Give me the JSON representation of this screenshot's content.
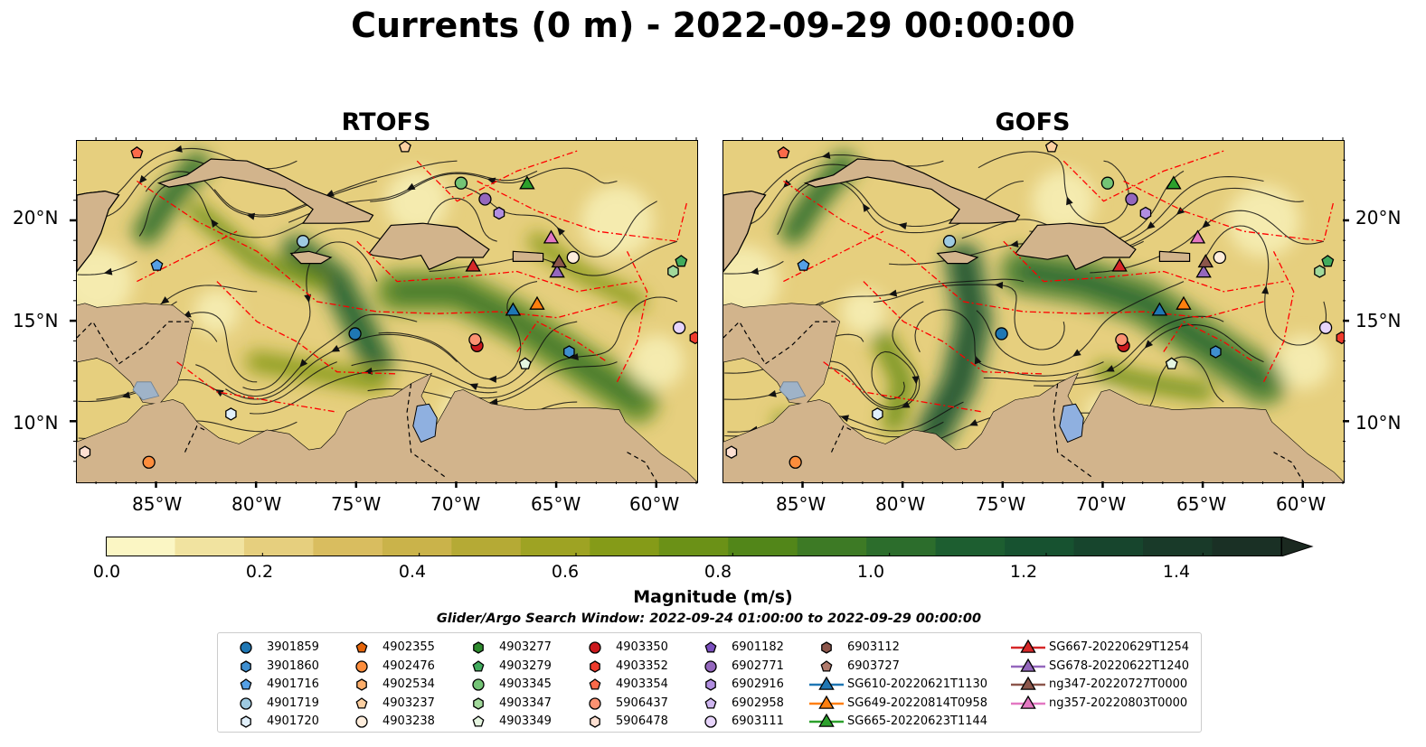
{
  "title": "Currents (0 m) - 2022-09-29 00:00:00",
  "panels": [
    {
      "title": "RTOFS"
    },
    {
      "title": "GOFS"
    }
  ],
  "axes": {
    "lon_ticks": [
      "85°W",
      "80°W",
      "75°W",
      "70°W",
      "65°W",
      "60°W"
    ],
    "lat_ticks": [
      "20°N",
      "15°N",
      "10°N"
    ]
  },
  "colorbar": {
    "ticks": [
      "0.0",
      "0.2",
      "0.4",
      "0.6",
      "0.8",
      "1.0",
      "1.2",
      "1.4"
    ],
    "label": "Magnitude (m/s)",
    "colors": [
      "#fbf6c4",
      "#f1e3a0",
      "#e6cf7e",
      "#d9bd5f",
      "#cab34a",
      "#b5aa35",
      "#9ea323",
      "#859b18",
      "#6b9117",
      "#528619",
      "#3d7a25",
      "#2c6d2c",
      "#1d5e30",
      "#175230",
      "#17452d",
      "#193a29",
      "#1a3025",
      "#1b2920"
    ]
  },
  "search_window": "Glider/Argo Search Window: 2022-09-24 01:00:00 to 2022-09-29 00:00:00",
  "legend": [
    {
      "label": "3901859",
      "marker": "circle",
      "color": "#1f77b4"
    },
    {
      "label": "3901860",
      "marker": "hexagon",
      "color": "#3f8fd0"
    },
    {
      "label": "4901716",
      "marker": "pentagon",
      "color": "#55a0e6"
    },
    {
      "label": "4901719",
      "marker": "circle",
      "color": "#9ecae1"
    },
    {
      "label": "4901720",
      "marker": "hexagon",
      "color": "#e1f0fb"
    },
    {
      "label": "4902355",
      "marker": "pentagon",
      "color": "#e6650a"
    },
    {
      "label": "4902476",
      "marker": "circle",
      "color": "#fd8d3c"
    },
    {
      "label": "4902534",
      "marker": "hexagon",
      "color": "#fdae6b"
    },
    {
      "label": "4903237",
      "marker": "pentagon",
      "color": "#fdd0a2"
    },
    {
      "label": "4903238",
      "marker": "circle",
      "color": "#feeddc"
    },
    {
      "label": "4903277",
      "marker": "hexagon",
      "color": "#2e8b2e"
    },
    {
      "label": "4903279",
      "marker": "pentagon",
      "color": "#41ab5d"
    },
    {
      "label": "4903345",
      "marker": "circle",
      "color": "#74c476"
    },
    {
      "label": "4903347",
      "marker": "hexagon",
      "color": "#a1d99b"
    },
    {
      "label": "4903349",
      "marker": "pentagon",
      "color": "#e5f5e0"
    },
    {
      "label": "4903350",
      "marker": "circle",
      "color": "#cb181d"
    },
    {
      "label": "4903352",
      "marker": "hexagon",
      "color": "#ef3b2c"
    },
    {
      "label": "4903354",
      "marker": "pentagon",
      "color": "#fb6a4a"
    },
    {
      "label": "5906437",
      "marker": "circle",
      "color": "#fc9272"
    },
    {
      "label": "5906478",
      "marker": "hexagon",
      "color": "#fee0d2"
    },
    {
      "label": "6901182",
      "marker": "pentagon",
      "color": "#7b4fbf"
    },
    {
      "label": "6902771",
      "marker": "circle",
      "color": "#9467bd"
    },
    {
      "label": "6902916",
      "marker": "hexagon",
      "color": "#b18ee0"
    },
    {
      "label": "6902958",
      "marker": "pentagon",
      "color": "#cfb6f0"
    },
    {
      "label": "6903111",
      "marker": "circle",
      "color": "#e7d4fb"
    },
    {
      "label": "6903112",
      "marker": "hexagon",
      "color": "#8c564b"
    },
    {
      "label": "6903727",
      "marker": "pentagon",
      "color": "#b07a6c"
    },
    {
      "label": "SG610-20220621T1130",
      "marker": "triangle-line",
      "color": "#1f77b4"
    },
    {
      "label": "SG649-20220814T0958",
      "marker": "triangle-line",
      "color": "#ff7f0e"
    },
    {
      "label": "SG665-20220623T1144",
      "marker": "triangle-line",
      "color": "#2ca02c"
    },
    {
      "label": "SG667-20220629T1254",
      "marker": "triangle-line",
      "color": "#d62728"
    },
    {
      "label": "SG678-20220622T1240",
      "marker": "triangle-line",
      "color": "#9467bd"
    },
    {
      "label": "ng347-20220727T0000",
      "marker": "triangle-line",
      "color": "#8c564b"
    },
    {
      "label": "ng357-20220803T0000",
      "marker": "triangle-line",
      "color": "#e377c2"
    }
  ],
  "chart_data": {
    "type": "map",
    "xlim": [
      -89,
      -58
    ],
    "ylim": [
      7,
      24
    ],
    "extent_units": "degrees longitude / latitude",
    "grid": false,
    "land_color": "#d2b48c",
    "water_body_color": "#8fb0e0",
    "eez_line_color": "#ff0000",
    "colorbar_range": [
      0.0,
      1.5
    ],
    "floats": [
      {
        "id": "3901859",
        "lon": -75.1,
        "lat": 14.4
      },
      {
        "id": "3901860",
        "lon": -64.4,
        "lat": 13.5
      },
      {
        "id": "4901716",
        "lon": -85.0,
        "lat": 17.8
      },
      {
        "id": "4901719",
        "lon": -77.7,
        "lat": 19.0
      },
      {
        "id": "4901720",
        "lon": -81.3,
        "lat": 10.4
      },
      {
        "id": "4902476",
        "lon": -85.4,
        "lat": 8.0
      },
      {
        "id": "4903237",
        "lon": -72.6,
        "lat": 23.7
      },
      {
        "id": "4903238",
        "lon": -64.2,
        "lat": 18.2
      },
      {
        "id": "4903345",
        "lon": -69.8,
        "lat": 21.9
      },
      {
        "id": "4903347",
        "lon": -59.2,
        "lat": 17.5
      },
      {
        "id": "4903349",
        "lon": -66.6,
        "lat": 12.9
      },
      {
        "id": "4903350",
        "lon": -69.0,
        "lat": 13.8
      },
      {
        "id": "4903352",
        "lon": -58.1,
        "lat": 14.2
      },
      {
        "id": "4903354",
        "lon": -86.0,
        "lat": 23.4
      },
      {
        "id": "5906437",
        "lon": -69.1,
        "lat": 14.1
      },
      {
        "id": "5906478",
        "lon": -88.6,
        "lat": 8.5
      },
      {
        "id": "6902771",
        "lon": -68.6,
        "lat": 21.1
      },
      {
        "id": "6902916",
        "lon": -67.9,
        "lat": 20.4
      },
      {
        "id": "6903111",
        "lon": -58.9,
        "lat": 14.7
      },
      {
        "id": "4903279",
        "lon": -58.8,
        "lat": 18.0
      }
    ],
    "gliders": [
      {
        "id": "SG610-20220621T1130",
        "lon": -67.2,
        "lat": 15.6
      },
      {
        "id": "SG649-20220814T0958",
        "lon": -66.0,
        "lat": 15.9
      },
      {
        "id": "SG665-20220623T1144",
        "lon": -66.5,
        "lat": 21.9
      },
      {
        "id": "SG667-20220629T1254",
        "lon": -69.2,
        "lat": 17.8
      },
      {
        "id": "SG678-20220622T1240",
        "lon": -65.0,
        "lat": 17.5
      },
      {
        "id": "ng347-20220727T0000",
        "lon": -64.9,
        "lat": 18.0
      },
      {
        "id": "ng357-20220803T0000",
        "lon": -65.3,
        "lat": 19.2
      }
    ]
  }
}
